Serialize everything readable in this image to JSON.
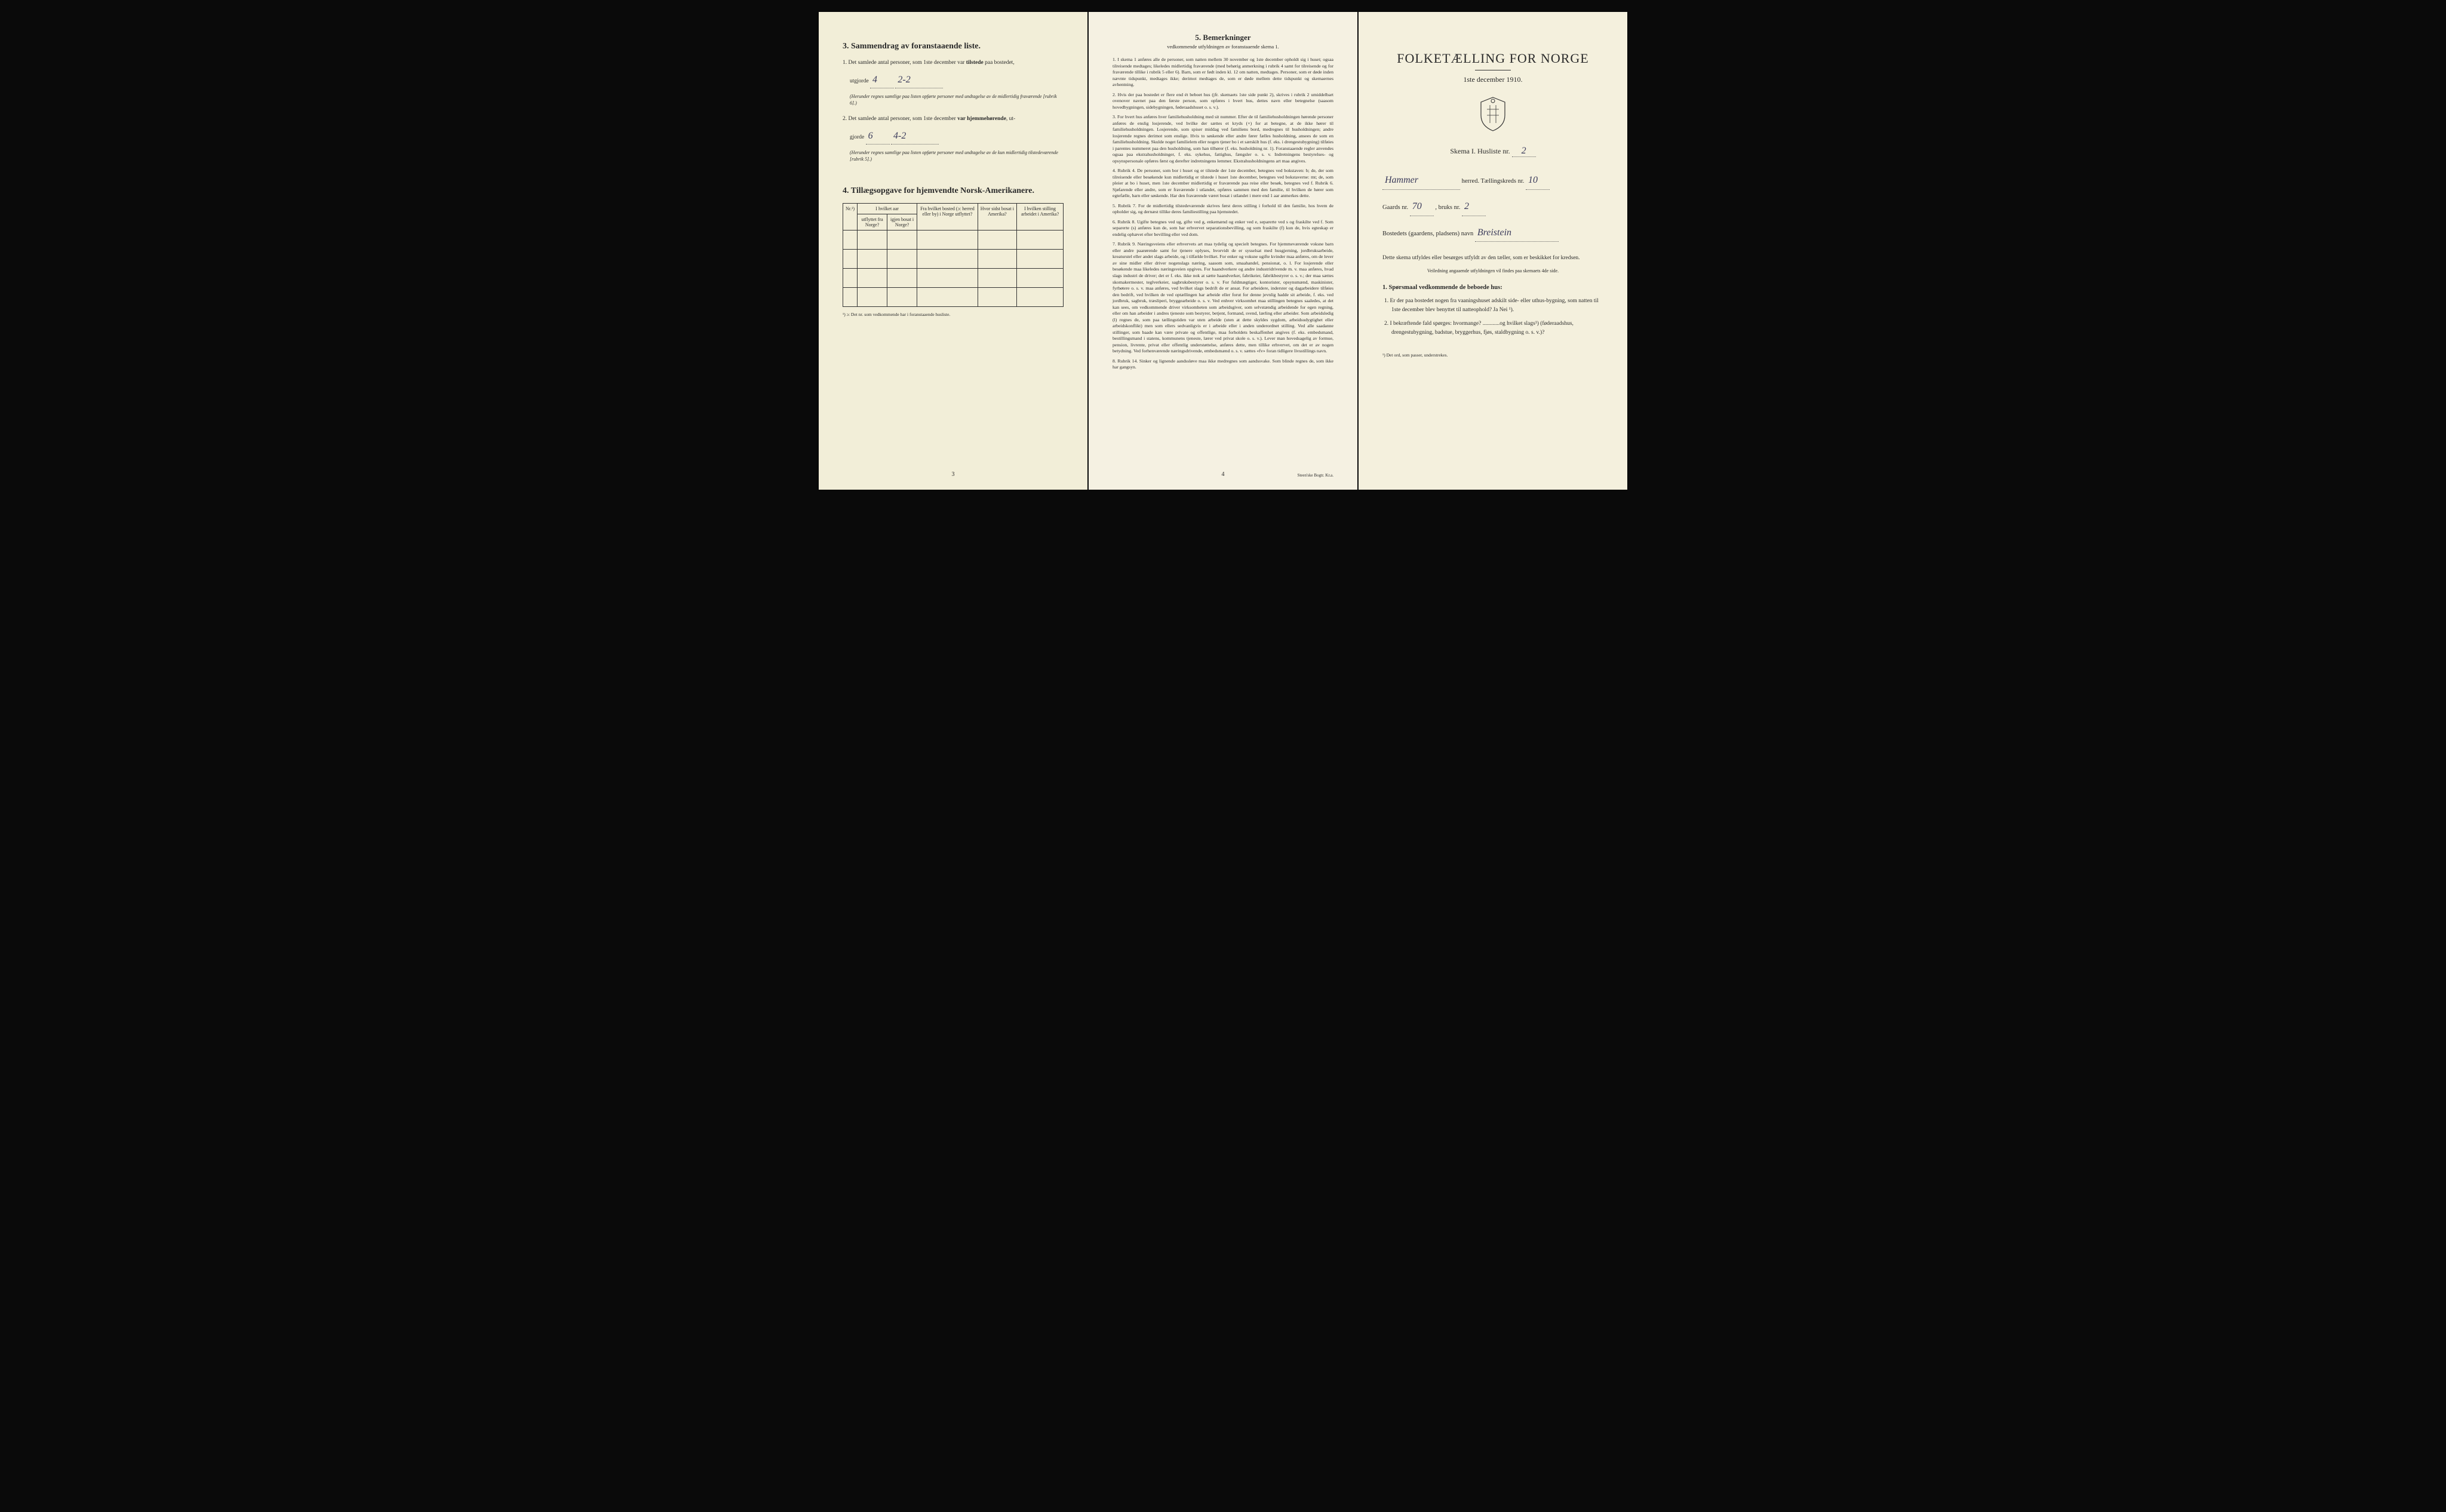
{
  "page3": {
    "section3_title": "3.  Sammendrag av foranstaaende liste.",
    "item1_prefix": "1.  Det samlede antal personer, som 1ste december var ",
    "item1_bold": "tilstede",
    "item1_suffix": " paa bostedet,",
    "utgjorde": "utgjorde",
    "val1a": "4",
    "val1b": "2-2",
    "item1_note": "(Herunder regnes samtlige paa listen opførte personer med undtagelse av de midlertidig fraværende [rubrik 6].)",
    "item2_prefix": "2.  Det samlede antal personer, som 1ste december ",
    "item2_bold": "var hjemmehørende",
    "item2_suffix": ", ut-",
    "gjorde": "gjorde",
    "val2a": "6",
    "val2b": "4-2",
    "item2_note": "(Herunder regnes samtlige paa listen opførte personer med undtagelse av de kun midlertidig tilstedeværende [rubrik 5].)",
    "section4_title": "4.  Tillægsopgave for hjemvendte Norsk-Amerikanere.",
    "th_nr": "Nr.¹)",
    "th_hvilket_aar": "I hvilket aar",
    "th_utflyttet": "utflyttet fra Norge?",
    "th_igjen": "igjen bosat i Norge?",
    "th_fra_bosted": "Fra hvilket bosted (ɔ: herred eller by) i Norge utflyttet?",
    "th_hvor_sidst": "Hvor sidst bosat i Amerika?",
    "th_stilling": "I hvilken stilling arbeidet i Amerika?",
    "footnote": "¹) ɔ: Det nr. som vedkommende har i foranstaaende husliste.",
    "page_num": "3"
  },
  "page4": {
    "title": "5.  Bemerkninger",
    "subtitle": "vedkommende utfyldningen av foranstaaende skema 1.",
    "items": [
      "1. I skema 1 anføres alle de personer, som natten mellem 30 november og 1ste december opholdt sig i huset; ogsaa tilreisende medtages; likeledes midlertidig fraværende (med behørig anmerkning i rubrik 4 samt for tilreisende og for fraværende tillike i rubrik 5 eller 6). Barn, som er født inden kl. 12 om natten, medtages. Personer, som er døde inden nævnte tidspunkt, medtages ikke; derimot medtages de, som er døde mellem dette tidspunkt og skemaernes avhentning.",
      "2. Hvis der paa bostedet er flere end ét beboet hus (jfr. skemaets 1ste side punkt 2), skrives i rubrik 2 umiddelbart ovenover navnet paa den første person, som opføres i hvert hus, dettes navn eller betegnelse (saasom hovedbygningen, sidebygningen, føderaadshuset o. s. v.).",
      "3. For hvert hus anføres hver familiehusholdning med sit nummer. Efter de til familiehusholdningen hørende personer anføres de enslig losjerende, ved hvilke der sættes et kryds (×) for at betegne, at de ikke hører til familiehusholdningen. Losjerende, som spiser middag ved familiens bord, medregnes til husholdningen; andre losjerende regnes derimot som enslige. Hvis to søskende eller andre fører fælles husholdning, ansees de som en familiehusholdning. Skulde noget familielem eller nogen tjener bo i et særskilt hus (f. eks. i drengestubygning) tilføies i parentes nummeret paa den husholdning, som han tilhører (f. eks. husholdning nr. 1).\n   Foranstaaende regler anvendes ogsaa paa ekstrahusholdninger, f. eks. sykehus, fattighus, fængsler o. s. v. Indretningens bestyrelses- og opsynspersonale opføres først og derefter indretningens lemmer. Ekstrahusholdningens art maa angives.",
      "4. Rubrik 4. De personer, som bor i huset og er tilstede der 1ste december, betegnes ved bokstaven: b; de, der som tilreisende eller besøkende kun midlertidig er tilstede i huset 1ste december, betegnes ved bokstaverne: mt; de, som pleier at bo i huset, men 1ste december midlertidig er fraværende paa reise eller besøk, betegnes ved f.\n   Rubrik 6. Sjøfarende eller andre, som er fraværende i utlandet, opføres sammen med den familie, til hvilken de hører som egtefælle, barn eller søskende.\n   Har den fraværende været bosat i utlandet i mere end 1 aar anmerkes dette.",
      "5. Rubrik 7. For de midlertidig tilstedeværende skrives først deres stilling i forhold til den familie, hos hvem de opholder sig, og dernæst tillike deres familiestilling paa hjemstedet.",
      "6. Rubrik 8. Ugifte betegnes ved ug, gifte ved g, enkemænd og enker ved e, separerte ved s og fraskilte ved f. Som separerte (s) anføres kun de, som har erhvervet separationsbevilling, og som fraskilte (f) kun de, hvis egteskap er endelig ophævet efter bevilling eller ved dom.",
      "7. Rubrik 9. Næringsveiens eller erhvervets art maa tydelig og specielt betegnes.\n   For hjemmeværende voksne barn eller andre paarørende samt for tjenere oplyses, hvorvidt de er sysselsat med husgjerning, jordbruksarbeide, kreaturstel eller andet slags arbeide, og i tilfælde hvilket. For enker og voksne ugifte kvinder maa anføres, om de lever av sine midler eller driver nogenslags næring, saasom som, smaahandel, pensionat, o. l.\n   For losjerende eller besøkende maa likeledes næringsveien opgives.\n   For haandverkere og andre industridrivende m. v. maa anføres, hvad slags industri de driver; det er f. eks. ikke nok at sætte haandverker, fabrikeier, fabrikbestyrer o. s. v.; der maa sættes skomakermester, teglverkeier, sagbruksbestyrer o. s. v.\n   For fuldmægtiger, kontorister, opsynsmænd, maskinister, fyrbøtere o. s. v. maa anføres, ved hvilket slags bedrift de er ansat.\n   For arbeidere, inderster og dagarbeidere tilføies den bedrift, ved hvilken de ved optællingen har arbeide eller forut for denne jevnlig hadde sit arbeide, f. eks. ved jordbruk, sagbruk, træsliperi, bryggearbeide o. s. v.\n   Ved enhver virksomhet maa stillingen betegnes saaledes, at det kan sees, om vedkommende driver virksomheten som arbeidsgiver, som selvstændig arbeidende for egen regning, eller om han arbeider i andres tjeneste som bestyrer, betjent, formand, svend, lærling eller arbeider.\n   Som arbeidsledig (l) regnes de, som paa tællingstiden var uten arbeide (uten at dette skyldes sygdom, arbeidsudygtighet eller arbeidskonflikt) men som ellers sedvanligvis er i arbeide eller i anden underordnet stilling.\n   Ved alle saadanne stillinger, som baade kan være private og offentlige, maa forholdets beskaffenhet angives (f. eks. embedsmand, bestillingsmand i statens, kommunens tjeneste, lærer ved privat skole o. s. v.).\n   Lever man hovedsagelig av formue, pension, livrente, privat eller offentlig understøttelse, anføres dette, men tillike erhvervet, om det er av nogen betydning.\n   Ved forhenværende næringsdrivende, embedsmænd o. s. v. sættes «fv» foran tidligere livsstillings navn.",
      "8. Rubrik 14. Sinker og lignende aandssløve maa ikke medregnes som aandssvake.\n   Som blinde regnes de, som ikke har gangsyn."
    ],
    "page_num": "4",
    "printer": "Steen'ske Bogtr.  Kr.a."
  },
  "page1": {
    "main_title": "FOLKETÆLLING FOR NORGE",
    "date": "1ste december 1910.",
    "skema_label": "Skema I.   Husliste nr.",
    "husliste_nr": "2",
    "herred_val": "Hammer",
    "herred_label": "herred.  Tællingskreds nr.",
    "kreds_nr": "10",
    "gaards_label": "Gaards nr.",
    "gaards_nr": "70",
    "bruks_label": ", bruks nr.",
    "bruks_nr": "2",
    "bosted_label": "Bostedets (gaardens, pladsens) navn",
    "bosted_val": "Breistein",
    "desc": "Dette skema utfyldes eller besørges utfyldt av den tæller, som er beskikket for kredsen.",
    "guide": "Veiledning angaaende utfyldningen vil findes paa skemaets 4de side.",
    "q_heading": "1. Spørsmaal vedkommende de beboede hus:",
    "q1": "1. Er der paa bostedet nogen fra vaaningshuset adskilt side- eller uthus-bygning, som natten til 1ste december blev benyttet til natteophold?   Ja   Nei ¹).",
    "q2": "2. I bekræftende fald spørges: hvormange? ............og hvilket slags¹) (føderaadshus, drengestubygning, badstue, bryggerhus, fjøs, staldbygning o. s. v.)?",
    "note": "¹) Det ord, som passer, understrekes."
  }
}
